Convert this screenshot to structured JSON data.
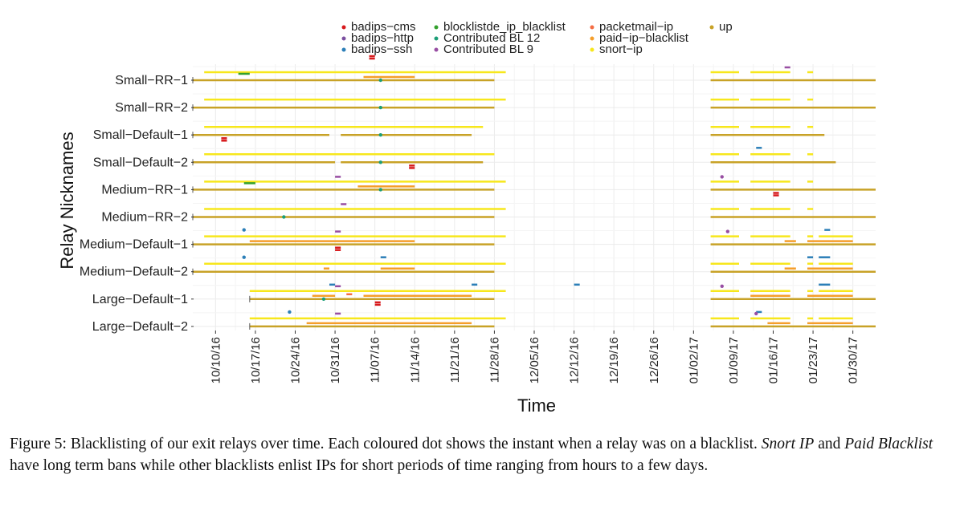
{
  "chart_data": {
    "type": "timeline",
    "xlabel": "Time",
    "ylabel": "Relay Nicknames",
    "x_range": [
      "2016-10-06",
      "2017-02-03"
    ],
    "x_ticks": [
      "10/10/16",
      "10/17/16",
      "10/24/16",
      "10/31/16",
      "11/07/16",
      "11/14/16",
      "11/21/16",
      "11/28/16",
      "12/05/16",
      "12/12/16",
      "12/19/16",
      "12/26/16",
      "01/02/17",
      "01/09/17",
      "01/16/17",
      "01/23/17",
      "01/30/17"
    ],
    "relays": [
      "Small-RR-1",
      "Small-RR-2",
      "Small-Default-1",
      "Small-Default-2",
      "Medium-RR-1",
      "Medium-RR-2",
      "Medium-Default-1",
      "Medium-Default-2",
      "Large-Default-1",
      "Large-Default-2"
    ],
    "relay_labels": [
      "Small−RR−1",
      "Small−RR−2",
      "Small−Default−1",
      "Small−Default−2",
      "Medium−RR−1",
      "Medium−RR−2",
      "Medium−Default−1",
      "Medium−Default−2",
      "Large−Default−1",
      "Large−Default−2"
    ],
    "legend": [
      {
        "key": "badips-cms",
        "label": "badips−cms",
        "color": "#d7191c"
      },
      {
        "key": "badips-http",
        "label": "badips−http",
        "color": "#7b4fa0"
      },
      {
        "key": "badips-ssh",
        "label": "badips−ssh",
        "color": "#2c7fb8"
      },
      {
        "key": "blocklistde",
        "label": "blocklistde_ip_blacklist",
        "color": "#33a02c"
      },
      {
        "key": "cbl12",
        "label": "Contributed BL 12",
        "color": "#1b9e77"
      },
      {
        "key": "cbl9",
        "label": "Contributed BL 9",
        "color": "#984ea3"
      },
      {
        "key": "packetmail",
        "label": "packetmail−ip",
        "color": "#f46d43"
      },
      {
        "key": "paid",
        "label": "paid−ip−blacklist",
        "color": "#f59e2a"
      },
      {
        "key": "snort",
        "label": "snort−ip",
        "color": "#f7e71c"
      },
      {
        "key": "up",
        "label": "up",
        "color": "#c8a227"
      }
    ],
    "series": [
      {
        "relay": "Small-RR-1",
        "intervals": [
          {
            "key": "snort",
            "start": "2016-10-08",
            "end": "2016-11-30"
          },
          {
            "key": "snort",
            "start": "2017-01-05",
            "end": "2017-01-10"
          },
          {
            "key": "snort",
            "start": "2017-01-12",
            "end": "2017-01-19"
          },
          {
            "key": "snort",
            "start": "2017-01-22",
            "end": "2017-01-23"
          },
          {
            "key": "paid",
            "start": "2016-11-05",
            "end": "2016-11-14"
          },
          {
            "key": "blocklistde",
            "start": "2016-10-14",
            "end": "2016-10-16"
          },
          {
            "key": "badips-cms",
            "start": "2016-11-06",
            "end": "2016-11-07"
          },
          {
            "key": "cbl9",
            "start": "2017-01-18",
            "end": "2017-01-19"
          },
          {
            "key": "up",
            "start": "2016-10-06",
            "end": "2016-11-28"
          },
          {
            "key": "up",
            "start": "2017-01-05",
            "end": "2017-02-03"
          }
        ],
        "points": [
          {
            "key": "cbl12",
            "date": "2016-11-08"
          }
        ]
      },
      {
        "relay": "Small-RR-2",
        "intervals": [
          {
            "key": "snort",
            "start": "2016-10-08",
            "end": "2016-11-30"
          },
          {
            "key": "snort",
            "start": "2017-01-05",
            "end": "2017-01-10"
          },
          {
            "key": "snort",
            "start": "2017-01-12",
            "end": "2017-01-19"
          },
          {
            "key": "snort",
            "start": "2017-01-22",
            "end": "2017-01-23"
          },
          {
            "key": "up",
            "start": "2016-10-06",
            "end": "2016-11-28"
          },
          {
            "key": "up",
            "start": "2017-01-05",
            "end": "2017-02-03"
          }
        ],
        "points": [
          {
            "key": "cbl12",
            "date": "2016-11-08"
          }
        ]
      },
      {
        "relay": "Small-Default-1",
        "intervals": [
          {
            "key": "snort",
            "start": "2016-10-08",
            "end": "2016-11-26"
          },
          {
            "key": "snort",
            "start": "2017-01-05",
            "end": "2017-01-10"
          },
          {
            "key": "snort",
            "start": "2017-01-12",
            "end": "2017-01-19"
          },
          {
            "key": "snort",
            "start": "2017-01-22",
            "end": "2017-01-23"
          },
          {
            "key": "up",
            "start": "2016-10-06",
            "end": "2016-10-30"
          },
          {
            "key": "up",
            "start": "2016-11-01",
            "end": "2016-11-24"
          },
          {
            "key": "up",
            "start": "2017-01-05",
            "end": "2017-01-25"
          }
        ],
        "points": [
          {
            "key": "cbl12",
            "date": "2016-11-08"
          }
        ]
      },
      {
        "relay": "Small-Default-2",
        "intervals": [
          {
            "key": "snort",
            "start": "2016-10-08",
            "end": "2016-11-28"
          },
          {
            "key": "snort",
            "start": "2017-01-05",
            "end": "2017-01-10"
          },
          {
            "key": "snort",
            "start": "2017-01-12",
            "end": "2017-01-19"
          },
          {
            "key": "snort",
            "start": "2017-01-22",
            "end": "2017-01-23"
          },
          {
            "key": "badips-ssh",
            "start": "2017-01-13",
            "end": "2017-01-14"
          },
          {
            "key": "badips-cms",
            "start": "2016-10-11",
            "end": "2016-10-12"
          },
          {
            "key": "up",
            "start": "2016-10-06",
            "end": "2016-10-31"
          },
          {
            "key": "up",
            "start": "2016-11-01",
            "end": "2016-11-26"
          },
          {
            "key": "up",
            "start": "2017-01-05",
            "end": "2017-01-27"
          }
        ],
        "points": [
          {
            "key": "cbl12",
            "date": "2016-11-08"
          }
        ]
      },
      {
        "relay": "Medium-RR-1",
        "intervals": [
          {
            "key": "snort",
            "start": "2016-10-08",
            "end": "2016-11-30"
          },
          {
            "key": "snort",
            "start": "2017-01-05",
            "end": "2017-01-10"
          },
          {
            "key": "snort",
            "start": "2017-01-12",
            "end": "2017-01-19"
          },
          {
            "key": "snort",
            "start": "2017-01-22",
            "end": "2017-01-23"
          },
          {
            "key": "paid",
            "start": "2016-11-04",
            "end": "2016-11-14"
          },
          {
            "key": "blocklistde",
            "start": "2016-10-15",
            "end": "2016-10-17"
          },
          {
            "key": "badips-cms",
            "start": "2016-11-13",
            "end": "2016-11-14"
          },
          {
            "key": "cbl9",
            "start": "2016-10-31",
            "end": "2016-11-01"
          },
          {
            "key": "up",
            "start": "2016-10-06",
            "end": "2016-11-28"
          },
          {
            "key": "up",
            "start": "2017-01-05",
            "end": "2017-02-03"
          }
        ],
        "points": [
          {
            "key": "cbl12",
            "date": "2016-11-08"
          },
          {
            "key": "cbl9",
            "date": "2017-01-07"
          }
        ]
      },
      {
        "relay": "Medium-RR-2",
        "intervals": [
          {
            "key": "snort",
            "start": "2016-10-08",
            "end": "2016-11-30"
          },
          {
            "key": "snort",
            "start": "2017-01-05",
            "end": "2017-01-10"
          },
          {
            "key": "snort",
            "start": "2017-01-12",
            "end": "2017-01-19"
          },
          {
            "key": "snort",
            "start": "2017-01-22",
            "end": "2017-01-23"
          },
          {
            "key": "cbl9",
            "start": "2016-11-01",
            "end": "2016-11-02"
          },
          {
            "key": "badips-cms",
            "start": "2017-01-16",
            "end": "2017-01-17"
          },
          {
            "key": "up",
            "start": "2016-10-06",
            "end": "2016-11-28"
          },
          {
            "key": "up",
            "start": "2017-01-05",
            "end": "2017-02-03"
          }
        ],
        "points": [
          {
            "key": "cbl12",
            "date": "2016-10-22"
          }
        ]
      },
      {
        "relay": "Medium-Default-1",
        "intervals": [
          {
            "key": "snort",
            "start": "2016-10-08",
            "end": "2016-11-30"
          },
          {
            "key": "snort",
            "start": "2017-01-05",
            "end": "2017-01-10"
          },
          {
            "key": "snort",
            "start": "2017-01-12",
            "end": "2017-01-19"
          },
          {
            "key": "snort",
            "start": "2017-01-22",
            "end": "2017-01-23"
          },
          {
            "key": "snort",
            "start": "2017-01-24",
            "end": "2017-01-30"
          },
          {
            "key": "paid",
            "start": "2016-10-16",
            "end": "2016-11-14"
          },
          {
            "key": "paid",
            "start": "2017-01-18",
            "end": "2017-01-20"
          },
          {
            "key": "paid",
            "start": "2017-01-22",
            "end": "2017-01-30"
          },
          {
            "key": "cbl9",
            "start": "2016-10-31",
            "end": "2016-11-01"
          },
          {
            "key": "badips-ssh",
            "start": "2017-01-25",
            "end": "2017-01-26"
          },
          {
            "key": "up",
            "start": "2016-10-06",
            "end": "2016-11-28"
          },
          {
            "key": "up",
            "start": "2017-01-05",
            "end": "2017-02-03"
          }
        ],
        "points": [
          {
            "key": "badips-ssh",
            "date": "2016-10-15"
          },
          {
            "key": "cbl9",
            "date": "2017-01-08"
          }
        ]
      },
      {
        "relay": "Medium-Default-2",
        "intervals": [
          {
            "key": "snort",
            "start": "2016-10-08",
            "end": "2016-11-30"
          },
          {
            "key": "snort",
            "start": "2017-01-05",
            "end": "2017-01-10"
          },
          {
            "key": "snort",
            "start": "2017-01-12",
            "end": "2017-01-19"
          },
          {
            "key": "snort",
            "start": "2017-01-22",
            "end": "2017-01-23"
          },
          {
            "key": "snort",
            "start": "2017-01-24",
            "end": "2017-01-30"
          },
          {
            "key": "paid",
            "start": "2016-10-29",
            "end": "2016-10-30"
          },
          {
            "key": "paid",
            "start": "2016-11-08",
            "end": "2016-11-14"
          },
          {
            "key": "paid",
            "start": "2017-01-18",
            "end": "2017-01-20"
          },
          {
            "key": "paid",
            "start": "2017-01-22",
            "end": "2017-01-30"
          },
          {
            "key": "badips-cms",
            "start": "2016-10-31",
            "end": "2016-11-01"
          },
          {
            "key": "badips-ssh",
            "start": "2016-11-08",
            "end": "2016-11-09"
          },
          {
            "key": "badips-ssh",
            "start": "2017-01-22",
            "end": "2017-01-23"
          },
          {
            "key": "badips-ssh",
            "start": "2017-01-24",
            "end": "2017-01-26"
          },
          {
            "key": "up",
            "start": "2016-10-06",
            "end": "2016-11-28"
          },
          {
            "key": "up",
            "start": "2017-01-05",
            "end": "2017-02-03"
          }
        ],
        "points": [
          {
            "key": "badips-ssh",
            "date": "2016-10-15"
          }
        ]
      },
      {
        "relay": "Large-Default-1",
        "intervals": [
          {
            "key": "snort",
            "start": "2016-10-16",
            "end": "2016-11-30"
          },
          {
            "key": "snort",
            "start": "2017-01-05",
            "end": "2017-01-10"
          },
          {
            "key": "snort",
            "start": "2017-01-12",
            "end": "2017-01-19"
          },
          {
            "key": "snort",
            "start": "2017-01-22",
            "end": "2017-01-23"
          },
          {
            "key": "snort",
            "start": "2017-01-24",
            "end": "2017-01-30"
          },
          {
            "key": "paid",
            "start": "2016-10-27",
            "end": "2016-10-31"
          },
          {
            "key": "paid",
            "start": "2016-11-05",
            "end": "2016-11-24"
          },
          {
            "key": "paid",
            "start": "2017-01-12",
            "end": "2017-01-19"
          },
          {
            "key": "paid",
            "start": "2017-01-22",
            "end": "2017-01-30"
          },
          {
            "key": "badips-ssh",
            "start": "2016-10-30",
            "end": "2016-10-31"
          },
          {
            "key": "badips-ssh",
            "start": "2016-11-24",
            "end": "2016-11-25"
          },
          {
            "key": "badips-ssh",
            "start": "2016-12-12",
            "end": "2016-12-13"
          },
          {
            "key": "badips-ssh",
            "start": "2017-01-24",
            "end": "2017-01-26"
          },
          {
            "key": "cbl9",
            "start": "2016-10-31",
            "end": "2016-11-01"
          },
          {
            "key": "packetmail",
            "start": "2016-11-02",
            "end": "2016-11-03"
          },
          {
            "key": "up",
            "start": "2016-10-16",
            "end": "2016-11-28"
          },
          {
            "key": "up",
            "start": "2017-01-05",
            "end": "2017-02-03"
          }
        ],
        "points": [
          {
            "key": "cbl12",
            "date": "2016-10-29"
          },
          {
            "key": "cbl9",
            "date": "2017-01-07"
          }
        ]
      },
      {
        "relay": "Large-Default-2",
        "intervals": [
          {
            "key": "snort",
            "start": "2016-10-16",
            "end": "2016-11-30"
          },
          {
            "key": "snort",
            "start": "2017-01-05",
            "end": "2017-01-10"
          },
          {
            "key": "snort",
            "start": "2017-01-12",
            "end": "2017-01-19"
          },
          {
            "key": "snort",
            "start": "2017-01-22",
            "end": "2017-01-23"
          },
          {
            "key": "snort",
            "start": "2017-01-24",
            "end": "2017-01-30"
          },
          {
            "key": "paid",
            "start": "2016-10-26",
            "end": "2016-11-24"
          },
          {
            "key": "paid",
            "start": "2017-01-15",
            "end": "2017-01-19"
          },
          {
            "key": "paid",
            "start": "2017-01-22",
            "end": "2017-01-30"
          },
          {
            "key": "cbl9",
            "start": "2016-10-31",
            "end": "2016-11-01"
          },
          {
            "key": "badips-cms",
            "start": "2016-11-07",
            "end": "2016-11-08"
          },
          {
            "key": "badips-ssh",
            "start": "2017-01-13",
            "end": "2017-01-14"
          },
          {
            "key": "up",
            "start": "2016-10-16",
            "end": "2016-11-28"
          },
          {
            "key": "up",
            "start": "2017-01-05",
            "end": "2017-02-03"
          }
        ],
        "points": [
          {
            "key": "cbl9",
            "date": "2017-01-13"
          },
          {
            "key": "badips-ssh",
            "date": "2016-10-23"
          }
        ]
      }
    ]
  },
  "caption": {
    "label": "Figure 5: Blacklisting of our exit relays over time. Each coloured dot shows the instant when a relay was on a blacklist.",
    "italic1": "Snort IP",
    "and": " and ",
    "italic2": "Paid Blacklist",
    "rest": " have long term bans while other blacklists enlist IPs for short periods of time ranging from hours to a few days."
  }
}
